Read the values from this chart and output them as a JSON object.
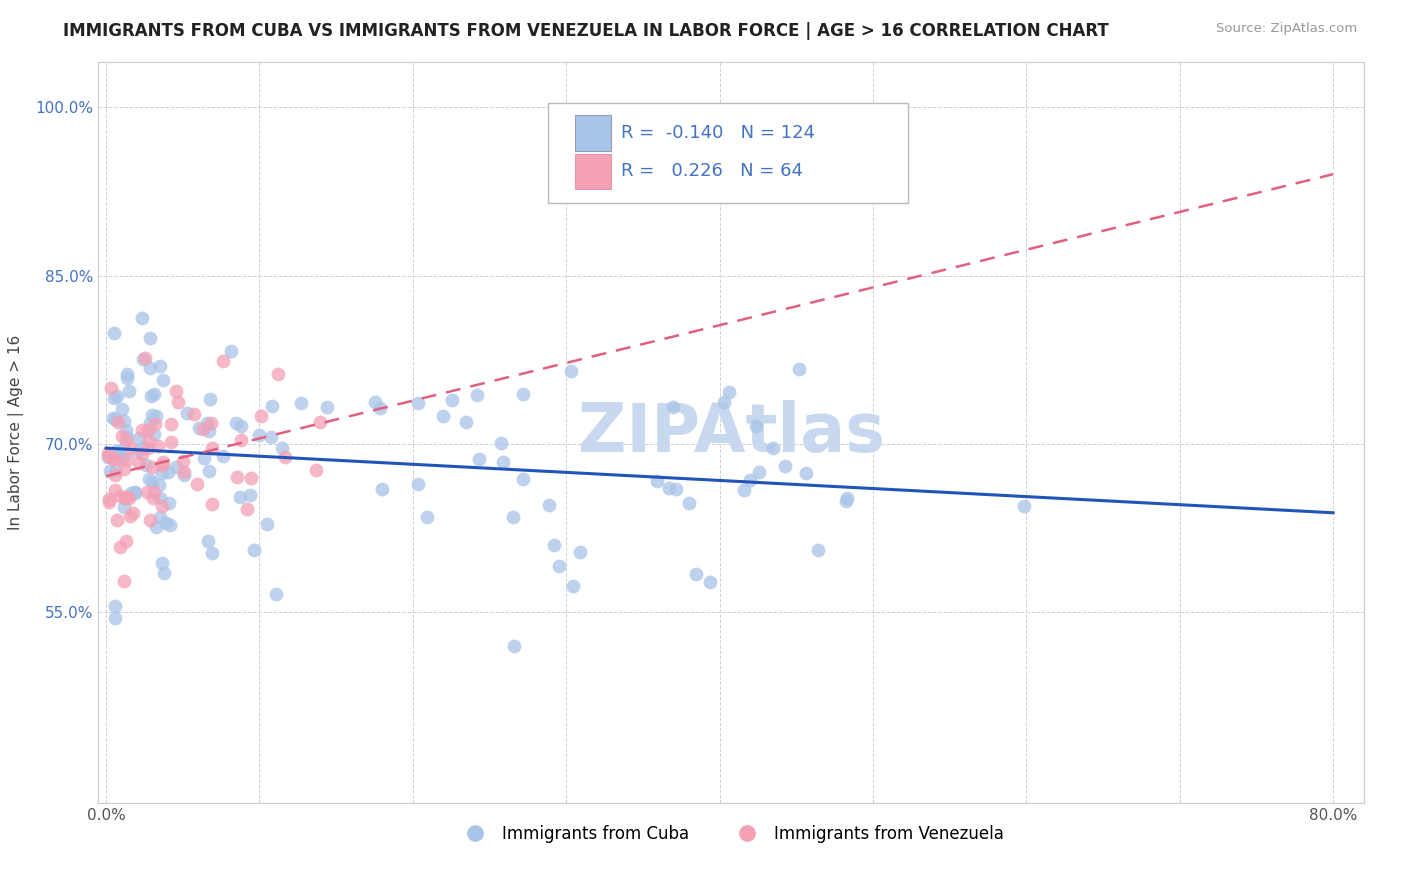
{
  "title": "IMMIGRANTS FROM CUBA VS IMMIGRANTS FROM VENEZUELA IN LABOR FORCE | AGE > 16 CORRELATION CHART",
  "source": "Source: ZipAtlas.com",
  "ylabel": "In Labor Force | Age > 16",
  "xlim": [
    -0.005,
    0.82
  ],
  "ylim": [
    0.38,
    1.04
  ],
  "cuba_R": -0.14,
  "cuba_N": 124,
  "venezuela_R": 0.226,
  "venezuela_N": 64,
  "cuba_color": "#A8C4E8",
  "venezuela_color": "#F4A0B5",
  "cuba_line_color": "#2255BB",
  "venezuela_line_color": "#E06080",
  "legend_label_cuba": "Immigrants from Cuba",
  "legend_label_venezuela": "Immigrants from Venezuela",
  "watermark_color": "#C8D8EE",
  "x_tick_labels": [
    "0.0%",
    "",
    "",
    "",
    "",
    "",
    "",
    "",
    "80.0%"
  ],
  "x_tick_positions": [
    0.0,
    0.1,
    0.2,
    0.3,
    0.4,
    0.5,
    0.6,
    0.7,
    0.8
  ],
  "y_tick_labels": [
    "55.0%",
    "70.0%",
    "85.0%",
    "100.0%"
  ],
  "y_tick_positions": [
    0.55,
    0.7,
    0.85,
    1.0
  ],
  "title_fontsize": 12,
  "axis_label_fontsize": 11,
  "tick_fontsize": 11
}
